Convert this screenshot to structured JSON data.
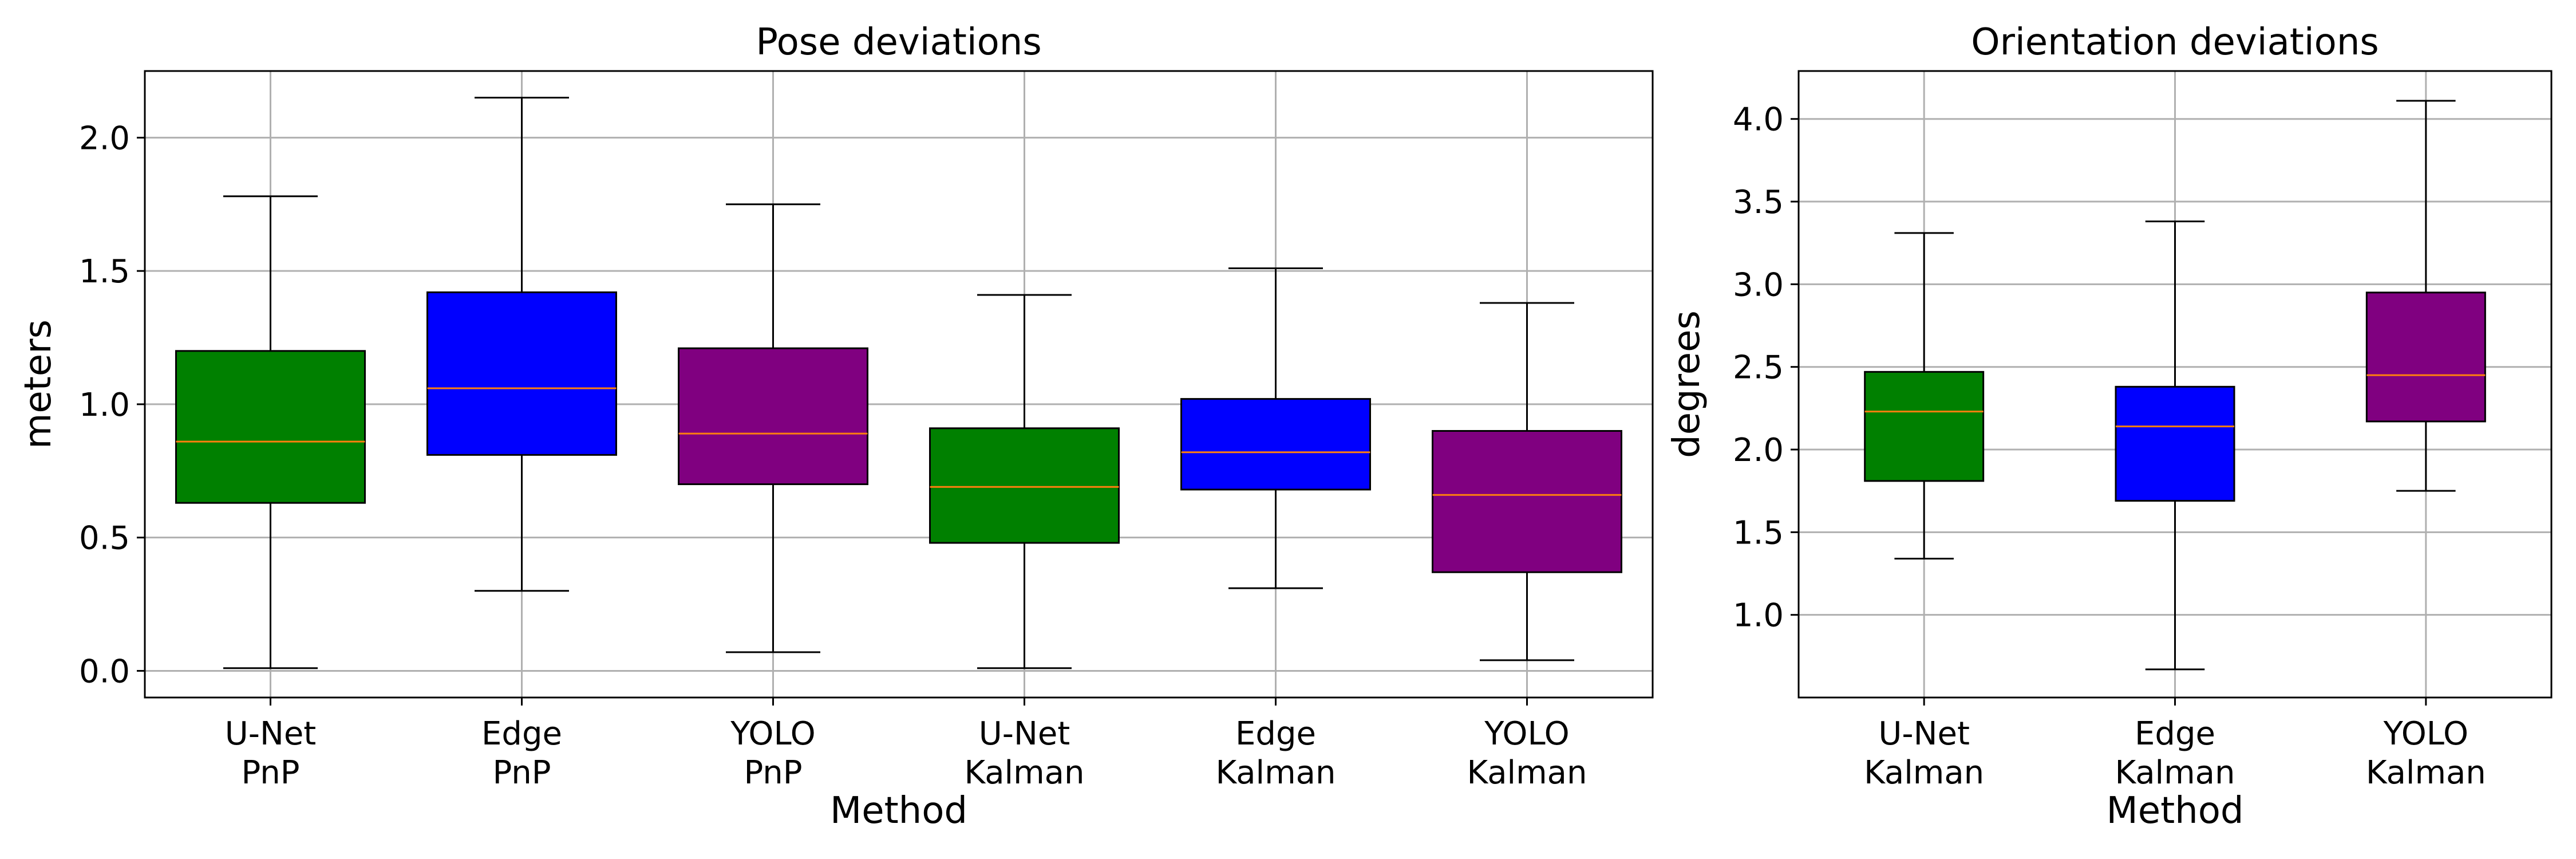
{
  "chart_data": [
    {
      "type": "box",
      "title": "Pose deviations",
      "xlabel": "Method",
      "ylabel": "meters",
      "ylim": [
        -0.1,
        2.25
      ],
      "yticks": [
        0.0,
        0.5,
        1.0,
        1.5,
        2.0
      ],
      "ytick_labels": [
        "0.0",
        "0.5",
        "1.0",
        "1.5",
        "2.0"
      ],
      "grid": true,
      "categories": [
        {
          "line1": "U-Net",
          "line2": "PnP"
        },
        {
          "line1": "Edge",
          "line2": "PnP"
        },
        {
          "line1": "YOLO",
          "line2": "PnP"
        },
        {
          "line1": "U-Net",
          "line2": "Kalman"
        },
        {
          "line1": "Edge",
          "line2": "Kalman"
        },
        {
          "line1": "YOLO",
          "line2": "Kalman"
        }
      ],
      "boxes": [
        {
          "whislo": 0.01,
          "q1": 0.63,
          "med": 0.86,
          "q3": 1.2,
          "whishi": 1.78,
          "color": "#008000"
        },
        {
          "whislo": 0.3,
          "q1": 0.81,
          "med": 1.06,
          "q3": 1.42,
          "whishi": 2.15,
          "color": "#0000ff"
        },
        {
          "whislo": 0.07,
          "q1": 0.7,
          "med": 0.89,
          "q3": 1.21,
          "whishi": 1.75,
          "color": "#800080"
        },
        {
          "whislo": 0.01,
          "q1": 0.48,
          "med": 0.69,
          "q3": 0.91,
          "whishi": 1.41,
          "color": "#008000"
        },
        {
          "whislo": 0.31,
          "q1": 0.68,
          "med": 0.82,
          "q3": 1.02,
          "whishi": 1.51,
          "color": "#0000ff"
        },
        {
          "whislo": 0.04,
          "q1": 0.37,
          "med": 0.66,
          "q3": 0.9,
          "whishi": 1.38,
          "color": "#800080"
        }
      ]
    },
    {
      "type": "box",
      "title": "Orientation deviations",
      "xlabel": "Method",
      "ylabel": "degrees",
      "ylim": [
        0.5,
        4.29
      ],
      "yticks": [
        1.0,
        1.5,
        2.0,
        2.5,
        3.0,
        3.5,
        4.0
      ],
      "ytick_labels": [
        "1.0",
        "1.5",
        "2.0",
        "2.5",
        "3.0",
        "3.5",
        "4.0"
      ],
      "grid": true,
      "categories": [
        {
          "line1": "U-Net",
          "line2": "Kalman"
        },
        {
          "line1": "Edge",
          "line2": "Kalman"
        },
        {
          "line1": "YOLO",
          "line2": "Kalman"
        }
      ],
      "boxes": [
        {
          "whislo": 1.34,
          "q1": 1.81,
          "med": 2.23,
          "q3": 2.47,
          "whishi": 3.31,
          "color": "#008000"
        },
        {
          "whislo": 0.67,
          "q1": 1.69,
          "med": 2.14,
          "q3": 2.38,
          "whishi": 3.38,
          "color": "#0000ff"
        },
        {
          "whislo": 1.75,
          "q1": 2.17,
          "med": 2.45,
          "q3": 2.95,
          "whishi": 4.11,
          "color": "#800080"
        }
      ]
    }
  ]
}
